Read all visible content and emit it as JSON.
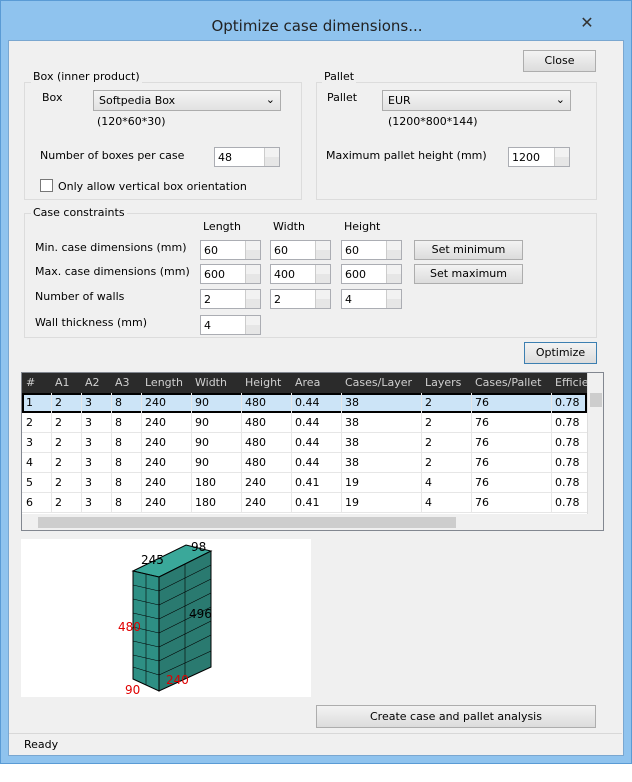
{
  "window": {
    "title": "Optimize case dimensions...",
    "close_button": "Close"
  },
  "box_group": {
    "label": "Box (inner product)",
    "box_label": "Box",
    "box_value": "Softpedia Box",
    "box_dims": "(120*60*30)",
    "boxes_label": "Number of boxes per case",
    "boxes_value": "48",
    "vertical_label": "Only allow vertical box orientation"
  },
  "pallet_group": {
    "label": "Pallet",
    "pallet_label": "Pallet",
    "pallet_value": "EUR",
    "pallet_dims": "(1200*800*144)",
    "height_label": "Maximum pallet height (mm)",
    "height_value": "1200"
  },
  "constraints": {
    "label": "Case constraints",
    "columns": [
      "Length",
      "Width",
      "Height"
    ],
    "rows": [
      {
        "label": "Min. case dimensions (mm)",
        "values": [
          "60",
          "60",
          "60"
        ]
      },
      {
        "label": "Max. case dimensions (mm)",
        "values": [
          "600",
          "400",
          "600"
        ]
      },
      {
        "label": "Number of walls",
        "values": [
          "2",
          "2",
          "4"
        ]
      },
      {
        "label": "Wall thickness (mm)",
        "values": [
          "4"
        ]
      }
    ],
    "set_min": "Set minimum",
    "set_max": "Set maximum"
  },
  "optimize_button": "Optimize",
  "table": {
    "headers": [
      "#",
      "A1",
      "A2",
      "A3",
      "Length",
      "Width",
      "Height",
      "Area",
      "Cases/Layer",
      "Layers",
      "Cases/Pallet",
      "Efficie"
    ],
    "rows": [
      [
        "1",
        "2",
        "3",
        "8",
        "240",
        "90",
        "480",
        "0.44",
        "38",
        "2",
        "76",
        "0.78"
      ],
      [
        "2",
        "2",
        "3",
        "8",
        "240",
        "90",
        "480",
        "0.44",
        "38",
        "2",
        "76",
        "0.78"
      ],
      [
        "3",
        "2",
        "3",
        "8",
        "240",
        "90",
        "480",
        "0.44",
        "38",
        "2",
        "76",
        "0.78"
      ],
      [
        "4",
        "2",
        "3",
        "8",
        "240",
        "90",
        "480",
        "0.44",
        "38",
        "2",
        "76",
        "0.78"
      ],
      [
        "5",
        "2",
        "3",
        "8",
        "240",
        "180",
        "240",
        "0.41",
        "19",
        "4",
        "76",
        "0.78"
      ],
      [
        "6",
        "2",
        "3",
        "8",
        "240",
        "180",
        "240",
        "0.41",
        "19",
        "4",
        "76",
        "0.78"
      ]
    ]
  },
  "diagram": {
    "top_length": "245",
    "top_width": "98",
    "right_height": "496",
    "left_height": "480",
    "bottom_width": "90",
    "bottom_length": "240"
  },
  "create_button": "Create case and pallet analysis",
  "status": "Ready"
}
